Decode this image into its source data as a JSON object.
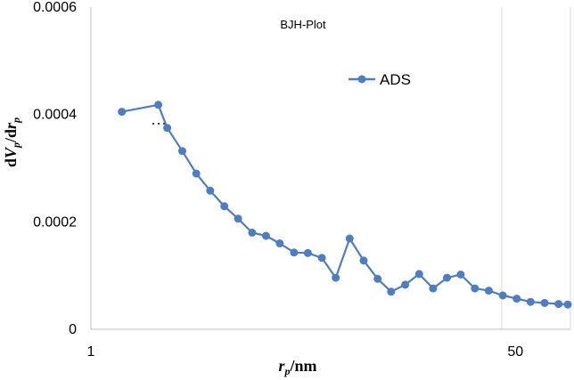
{
  "chart_data": {
    "type": "line",
    "title": "BJH-Plot",
    "xlabel": {
      "main": "r",
      "sub": "p",
      "rest": "/nm"
    },
    "ylabel": {
      "p1": "d",
      "p2": "V",
      "p3": "p",
      "p4": "/d",
      "p5": "r",
      "p6": "p"
    },
    "xscale": "log",
    "xlim": [
      1,
      83
    ],
    "ylim": [
      0,
      0.0006
    ],
    "xticks": [
      1,
      50
    ],
    "xtick_labels": [
      "1",
      "50"
    ],
    "yticks": [
      0,
      0.0002,
      0.0004,
      0.0006
    ],
    "ytick_labels": [
      "0",
      "0.0002",
      "0.0004",
      "0.0006"
    ],
    "grid": "vertical gridline at x=50",
    "legend_position": "top-right",
    "series": [
      {
        "name": "ADS",
        "color": "#4E7DC0",
        "x": [
          1.33,
          1.86,
          2.02,
          2.32,
          2.64,
          3.0,
          3.42,
          3.88,
          4.42,
          5.02,
          5.7,
          6.5,
          7.38,
          8.4,
          9.55,
          10.85,
          12.35,
          14.05,
          15.9,
          18.1,
          20.6,
          23.4,
          26.6,
          30.2,
          34.4,
          39.1,
          44.5,
          50.6,
          57.5,
          65.4,
          74.4,
          81.0
        ],
        "y": [
          0.000405,
          0.000418,
          0.000375,
          0.000332,
          0.00029,
          0.000258,
          0.000229,
          0.000206,
          0.00018,
          0.000174,
          0.00016,
          0.000143,
          0.000142,
          0.000133,
          9.6e-05,
          0.000169,
          0.000128,
          9.4e-05,
          7e-05,
          8.3e-05,
          0.000103,
          7.6e-05,
          9.6e-05,
          0.000102,
          7.6e-05,
          7.2e-05,
          6.3e-05,
          5.7e-05,
          5.1e-05,
          4.9e-05,
          4.7e-05,
          4.6e-05
        ]
      }
    ]
  }
}
